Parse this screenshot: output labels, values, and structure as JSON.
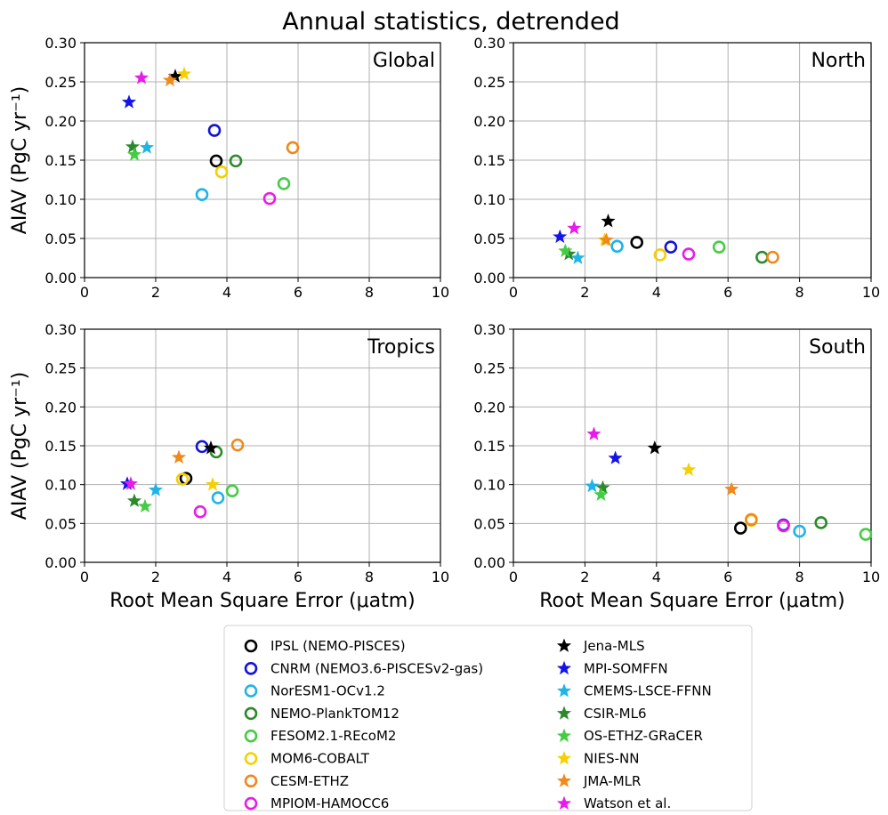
{
  "title": "Annual statistics, detrended",
  "chart_data": [
    {
      "type": "scatter",
      "panel": "Global",
      "xlabel": "",
      "ylabel": "AIAV (PgC yr⁻¹)",
      "xlim": [
        0,
        10
      ],
      "ylim": [
        0,
        0.3
      ],
      "xticks": [
        "0",
        "2",
        "4",
        "6",
        "8",
        "10"
      ],
      "yticks": [
        "0.00",
        "0.05",
        "0.10",
        "0.15",
        "0.20",
        "0.25",
        "0.30"
      ],
      "grid": true,
      "points": [
        {
          "series": "IPSL (NEMO-PISCES)",
          "x": 3.7,
          "y": 0.149
        },
        {
          "series": "CNRM (NEMO3.6-PISCESv2-gas)",
          "x": 3.65,
          "y": 0.188
        },
        {
          "series": "NorESM1-OCv1.2",
          "x": 3.3,
          "y": 0.106
        },
        {
          "series": "NEMO-PlankTOM12",
          "x": 4.25,
          "y": 0.149
        },
        {
          "series": "FESOM2.1-REcoM2",
          "x": 5.6,
          "y": 0.12
        },
        {
          "series": "MOM6-COBALT",
          "x": 3.85,
          "y": 0.135
        },
        {
          "series": "CESM-ETHZ",
          "x": 5.85,
          "y": 0.166
        },
        {
          "series": "MPIOM-HAMOCC6",
          "x": 5.2,
          "y": 0.101
        },
        {
          "series": "Jena-MLS",
          "x": 2.55,
          "y": 0.257
        },
        {
          "series": "MPI-SOMFFN",
          "x": 1.25,
          "y": 0.224
        },
        {
          "series": "CMEMS-LSCE-FFNN",
          "x": 1.75,
          "y": 0.166
        },
        {
          "series": "CSIR-ML6",
          "x": 1.35,
          "y": 0.167
        },
        {
          "series": "OS-ETHZ-GRaCER",
          "x": 1.4,
          "y": 0.157
        },
        {
          "series": "NIES-NN",
          "x": 2.8,
          "y": 0.26
        },
        {
          "series": "JMA-MLR",
          "x": 2.4,
          "y": 0.252
        },
        {
          "series": "Watson et al.",
          "x": 1.6,
          "y": 0.255
        }
      ]
    },
    {
      "type": "scatter",
      "panel": "North",
      "xlabel": "",
      "ylabel": "",
      "xlim": [
        0,
        10
      ],
      "ylim": [
        0,
        0.3
      ],
      "xticks": [
        "0",
        "2",
        "4",
        "6",
        "8",
        "10"
      ],
      "yticks": [
        "0.00",
        "0.05",
        "0.10",
        "0.15",
        "0.20",
        "0.25",
        "0.30"
      ],
      "grid": true,
      "points": [
        {
          "series": "IPSL (NEMO-PISCES)",
          "x": 3.45,
          "y": 0.045
        },
        {
          "series": "CNRM (NEMO3.6-PISCESv2-gas)",
          "x": 4.4,
          "y": 0.039
        },
        {
          "series": "NorESM1-OCv1.2",
          "x": 2.9,
          "y": 0.04
        },
        {
          "series": "NEMO-PlankTOM12",
          "x": 6.95,
          "y": 0.026
        },
        {
          "series": "FESOM2.1-REcoM2",
          "x": 5.75,
          "y": 0.039
        },
        {
          "series": "MOM6-COBALT",
          "x": 4.1,
          "y": 0.029
        },
        {
          "series": "CESM-ETHZ",
          "x": 7.25,
          "y": 0.026
        },
        {
          "series": "MPIOM-HAMOCC6",
          "x": 4.9,
          "y": 0.03
        },
        {
          "series": "Jena-MLS",
          "x": 2.65,
          "y": 0.072
        },
        {
          "series": "MPI-SOMFFN",
          "x": 1.3,
          "y": 0.052
        },
        {
          "series": "CMEMS-LSCE-FFNN",
          "x": 1.8,
          "y": 0.025
        },
        {
          "series": "CSIR-ML6",
          "x": 1.55,
          "y": 0.03
        },
        {
          "series": "OS-ETHZ-GRaCER",
          "x": 1.45,
          "y": 0.034
        },
        {
          "series": "NIES-NN",
          "x": 2.55,
          "y": 0.048
        },
        {
          "series": "JMA-MLR",
          "x": 2.6,
          "y": 0.048
        },
        {
          "series": "Watson et al.",
          "x": 1.7,
          "y": 0.063
        }
      ]
    },
    {
      "type": "scatter",
      "panel": "Tropics",
      "xlabel": "Root Mean Square Error (μatm)",
      "ylabel": "AIAV (PgC yr⁻¹)",
      "xlim": [
        0,
        10
      ],
      "ylim": [
        0,
        0.3
      ],
      "xticks": [
        "0",
        "2",
        "4",
        "6",
        "8",
        "10"
      ],
      "yticks": [
        "0.00",
        "0.05",
        "0.10",
        "0.15",
        "0.20",
        "0.25",
        "0.30"
      ],
      "grid": true,
      "points": [
        {
          "series": "IPSL (NEMO-PISCES)",
          "x": 2.85,
          "y": 0.108
        },
        {
          "series": "CNRM (NEMO3.6-PISCESv2-gas)",
          "x": 3.3,
          "y": 0.149
        },
        {
          "series": "NorESM1-OCv1.2",
          "x": 3.75,
          "y": 0.083
        },
        {
          "series": "NEMO-PlankTOM12",
          "x": 3.7,
          "y": 0.142
        },
        {
          "series": "FESOM2.1-REcoM2",
          "x": 4.15,
          "y": 0.092
        },
        {
          "series": "MOM6-COBALT",
          "x": 2.75,
          "y": 0.107
        },
        {
          "series": "CESM-ETHZ",
          "x": 4.3,
          "y": 0.151
        },
        {
          "series": "MPIOM-HAMOCC6",
          "x": 3.25,
          "y": 0.065
        },
        {
          "series": "Jena-MLS",
          "x": 3.55,
          "y": 0.147
        },
        {
          "series": "MPI-SOMFFN",
          "x": 1.2,
          "y": 0.101
        },
        {
          "series": "CMEMS-LSCE-FFNN",
          "x": 2.0,
          "y": 0.093
        },
        {
          "series": "CSIR-ML6",
          "x": 1.4,
          "y": 0.079
        },
        {
          "series": "OS-ETHZ-GRaCER",
          "x": 1.7,
          "y": 0.072
        },
        {
          "series": "NIES-NN",
          "x": 3.6,
          "y": 0.1
        },
        {
          "series": "JMA-MLR",
          "x": 2.65,
          "y": 0.135
        },
        {
          "series": "Watson et al.",
          "x": 1.3,
          "y": 0.101
        }
      ]
    },
    {
      "type": "scatter",
      "panel": "South",
      "xlabel": "Root Mean Square Error (μatm)",
      "ylabel": "",
      "xlim": [
        0,
        10
      ],
      "ylim": [
        0,
        0.3
      ],
      "xticks": [
        "0",
        "2",
        "4",
        "6",
        "8",
        "10"
      ],
      "yticks": [
        "0.00",
        "0.05",
        "0.10",
        "0.15",
        "0.20",
        "0.25",
        "0.30"
      ],
      "grid": true,
      "points": [
        {
          "series": "IPSL (NEMO-PISCES)",
          "x": 6.35,
          "y": 0.044
        },
        {
          "series": "CNRM (NEMO3.6-PISCESv2-gas)",
          "x": 7.55,
          "y": 0.048
        },
        {
          "series": "NorESM1-OCv1.2",
          "x": 8.0,
          "y": 0.04
        },
        {
          "series": "NEMO-PlankTOM12",
          "x": 8.6,
          "y": 0.051
        },
        {
          "series": "FESOM2.1-REcoM2",
          "x": 9.85,
          "y": 0.036
        },
        {
          "series": "MOM6-COBALT",
          "x": 6.65,
          "y": 0.054
        },
        {
          "series": "CESM-ETHZ",
          "x": 6.65,
          "y": 0.055
        },
        {
          "series": "MPIOM-HAMOCC6",
          "x": 7.55,
          "y": 0.047
        },
        {
          "series": "Jena-MLS",
          "x": 3.95,
          "y": 0.147
        },
        {
          "series": "MPI-SOMFFN",
          "x": 2.85,
          "y": 0.134
        },
        {
          "series": "CMEMS-LSCE-FFNN",
          "x": 2.2,
          "y": 0.098
        },
        {
          "series": "CSIR-ML6",
          "x": 2.5,
          "y": 0.096
        },
        {
          "series": "OS-ETHZ-GRaCER",
          "x": 2.45,
          "y": 0.087
        },
        {
          "series": "NIES-NN",
          "x": 4.9,
          "y": 0.119
        },
        {
          "series": "JMA-MLR",
          "x": 6.1,
          "y": 0.094
        },
        {
          "series": "Watson et al.",
          "x": 2.25,
          "y": 0.165
        }
      ]
    }
  ],
  "legend": {
    "placement": "bottom-center",
    "entries": [
      {
        "name": "IPSL (NEMO-PISCES)",
        "marker": "circle",
        "color": "#000000"
      },
      {
        "name": "CNRM (NEMO3.6-PISCESv2-gas)",
        "marker": "circle",
        "color": "#1414d2"
      },
      {
        "name": "NorESM1-OCv1.2",
        "marker": "circle",
        "color": "#1fb4e8"
      },
      {
        "name": "NEMO-PlankTOM12",
        "marker": "circle",
        "color": "#2b8a2b"
      },
      {
        "name": "FESOM2.1-REcoM2",
        "marker": "circle",
        "color": "#45cc45"
      },
      {
        "name": "MOM6-COBALT",
        "marker": "circle",
        "color": "#f5d000"
      },
      {
        "name": "CESM-ETHZ",
        "marker": "circle",
        "color": "#f0891a"
      },
      {
        "name": "MPIOM-HAMOCC6",
        "marker": "circle",
        "color": "#e81ce8"
      },
      {
        "name": "Jena-MLS",
        "marker": "star",
        "color": "#000000"
      },
      {
        "name": "MPI-SOMFFN",
        "marker": "star",
        "color": "#1414e8"
      },
      {
        "name": "CMEMS-LSCE-FFNN",
        "marker": "star",
        "color": "#1fb4e8"
      },
      {
        "name": "CSIR-ML6",
        "marker": "star",
        "color": "#2b8a2b"
      },
      {
        "name": "OS-ETHZ-GRaCER",
        "marker": "star",
        "color": "#45cc45"
      },
      {
        "name": "NIES-NN",
        "marker": "star",
        "color": "#f5d000"
      },
      {
        "name": "JMA-MLR",
        "marker": "star",
        "color": "#f0891a"
      },
      {
        "name": "Watson et al.",
        "marker": "star",
        "color": "#e81ce8"
      }
    ]
  }
}
